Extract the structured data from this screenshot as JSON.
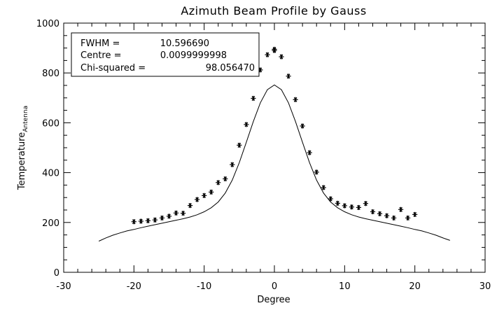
{
  "chart_data": {
    "type": "scatter",
    "title": "Azimuth Beam Profile by Gauss",
    "xlabel": "Degree",
    "ylabel": "Temperature",
    "ylabel_subscript": "Antenna",
    "xlim": [
      -30,
      30
    ],
    "ylim": [
      0,
      1000
    ],
    "xticks": [
      "-30",
      "-20",
      "-10",
      "0",
      "10",
      "20",
      "30"
    ],
    "yticks": [
      "0",
      "200",
      "400",
      "600",
      "800",
      "1000"
    ],
    "grid": false,
    "annotation_box": [
      {
        "label": "FWHM =",
        "value": "10.596690"
      },
      {
        "label": "Centre =",
        "value": "0.0099999998"
      },
      {
        "label": "Chi-squared =",
        "value": "98.056470"
      }
    ],
    "series": [
      {
        "type": "scatter",
        "marker": "asterisk",
        "x": [
          -20,
          -19,
          -18,
          -17,
          -16,
          -15,
          -14,
          -13,
          -12,
          -11,
          -10,
          -9,
          -8,
          -7,
          -6,
          -5,
          -4,
          -3,
          -2,
          -1,
          0,
          0,
          1,
          2,
          3,
          4,
          5,
          6,
          7,
          8,
          9,
          10,
          11,
          12,
          13,
          14,
          15,
          16,
          17,
          18,
          19,
          20
        ],
        "y": [
          203,
          205,
          207,
          210,
          218,
          225,
          238,
          237,
          268,
          292,
          308,
          322,
          360,
          375,
          432,
          510,
          593,
          698,
          812,
          873,
          895,
          890,
          865,
          787,
          693,
          587,
          480,
          402,
          340,
          295,
          277,
          267,
          262,
          260,
          276,
          243,
          235,
          227,
          218,
          252,
          218,
          232
        ]
      },
      {
        "type": "line",
        "x": [
          -25,
          -24,
          -23,
          -22,
          -21,
          -20,
          -19,
          -18,
          -17,
          -16,
          -15,
          -14,
          -13,
          -12,
          -11,
          -10,
          -9,
          -8,
          -7,
          -6,
          -5,
          -4,
          -3,
          -2,
          -1,
          0,
          1,
          2,
          3,
          4,
          5,
          6,
          7,
          8,
          9,
          10,
          11,
          12,
          13,
          14,
          15,
          16,
          17,
          18,
          19,
          20,
          21,
          22,
          23,
          24,
          25
        ],
        "y": [
          125,
          138,
          149,
          158,
          166,
          172,
          179,
          185,
          191,
          197,
          203,
          209,
          215,
          222,
          231,
          243,
          259,
          282,
          318,
          370,
          440,
          522,
          605,
          680,
          733,
          752,
          733,
          680,
          605,
          522,
          440,
          370,
          318,
          282,
          259,
          243,
          231,
          222,
          215,
          209,
          203,
          197,
          191,
          185,
          179,
          172,
          166,
          158,
          149,
          138,
          128
        ]
      }
    ]
  }
}
